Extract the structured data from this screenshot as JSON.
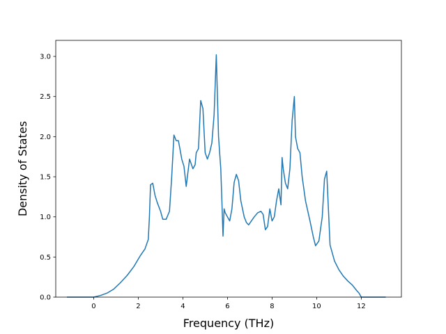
{
  "chart_data": {
    "type": "line",
    "title": "",
    "xlabel": "Frequency (THz)",
    "ylabel": "Density of States",
    "xlim": [
      -1.7,
      13.8
    ],
    "ylim": [
      0.0,
      3.2
    ],
    "xticks": [
      0,
      2,
      4,
      6,
      8,
      10,
      12
    ],
    "yticks": [
      0.0,
      0.5,
      1.0,
      1.5,
      2.0,
      2.5,
      3.0
    ],
    "xtick_labels": [
      "0",
      "2",
      "4",
      "6",
      "8",
      "10",
      "12"
    ],
    "ytick_labels": [
      "0.0",
      "0.5",
      "1.0",
      "1.5",
      "2.0",
      "2.5",
      "3.0"
    ],
    "grid": false,
    "legend": false,
    "line_color": "#1f77b4",
    "series": [
      {
        "x": [
          -1.2,
          -0.5,
          0.0,
          0.3,
          0.6,
          0.9,
          1.2,
          1.5,
          1.8,
          2.1,
          2.3,
          2.45,
          2.5,
          2.55,
          2.65,
          2.75,
          2.85,
          3.0,
          3.1,
          3.25,
          3.4,
          3.5,
          3.6,
          3.7,
          3.8,
          3.9,
          3.95,
          4.05,
          4.15,
          4.3,
          4.45,
          4.55,
          4.6,
          4.7,
          4.8,
          4.9,
          5.0,
          5.1,
          5.2,
          5.3,
          5.4,
          5.5,
          5.6,
          5.7,
          5.75,
          5.8,
          5.85,
          5.9,
          6.0,
          6.1,
          6.2,
          6.3,
          6.4,
          6.5,
          6.6,
          6.75,
          6.85,
          6.95,
          7.05,
          7.2,
          7.35,
          7.5,
          7.6,
          7.7,
          7.8,
          7.9,
          8.0,
          8.1,
          8.2,
          8.3,
          8.4,
          8.45,
          8.5,
          8.6,
          8.7,
          8.8,
          8.9,
          9.0,
          9.05,
          9.15,
          9.25,
          9.35,
          9.5,
          9.7,
          9.85,
          9.95,
          10.1,
          10.15,
          10.25,
          10.35,
          10.45,
          10.6,
          10.8,
          11.0,
          11.2,
          11.4,
          11.6,
          11.8,
          11.9,
          12.0,
          12.5,
          13.1
        ],
        "y": [
          0.0,
          0.0,
          0.0,
          0.02,
          0.05,
          0.1,
          0.18,
          0.27,
          0.38,
          0.52,
          0.6,
          0.72,
          1.0,
          1.4,
          1.42,
          1.27,
          1.18,
          1.07,
          0.97,
          0.97,
          1.07,
          1.5,
          2.02,
          1.95,
          1.95,
          1.8,
          1.72,
          1.63,
          1.38,
          1.72,
          1.6,
          1.65,
          1.8,
          1.85,
          2.45,
          2.35,
          1.8,
          1.72,
          1.8,
          1.92,
          2.27,
          3.02,
          2.0,
          1.6,
          1.2,
          0.76,
          1.1,
          1.05,
          1.0,
          0.95,
          1.1,
          1.43,
          1.53,
          1.45,
          1.2,
          1.0,
          0.93,
          0.9,
          0.94,
          1.0,
          1.05,
          1.07,
          1.03,
          0.84,
          0.88,
          1.1,
          0.95,
          1.0,
          1.2,
          1.35,
          1.15,
          1.74,
          1.6,
          1.42,
          1.35,
          1.6,
          2.2,
          2.5,
          2.0,
          1.85,
          1.8,
          1.5,
          1.2,
          0.95,
          0.75,
          0.64,
          0.7,
          0.8,
          1.0,
          1.47,
          1.57,
          0.65,
          0.45,
          0.34,
          0.26,
          0.2,
          0.15,
          0.08,
          0.05,
          0.0,
          0.0,
          0.0
        ]
      }
    ]
  }
}
